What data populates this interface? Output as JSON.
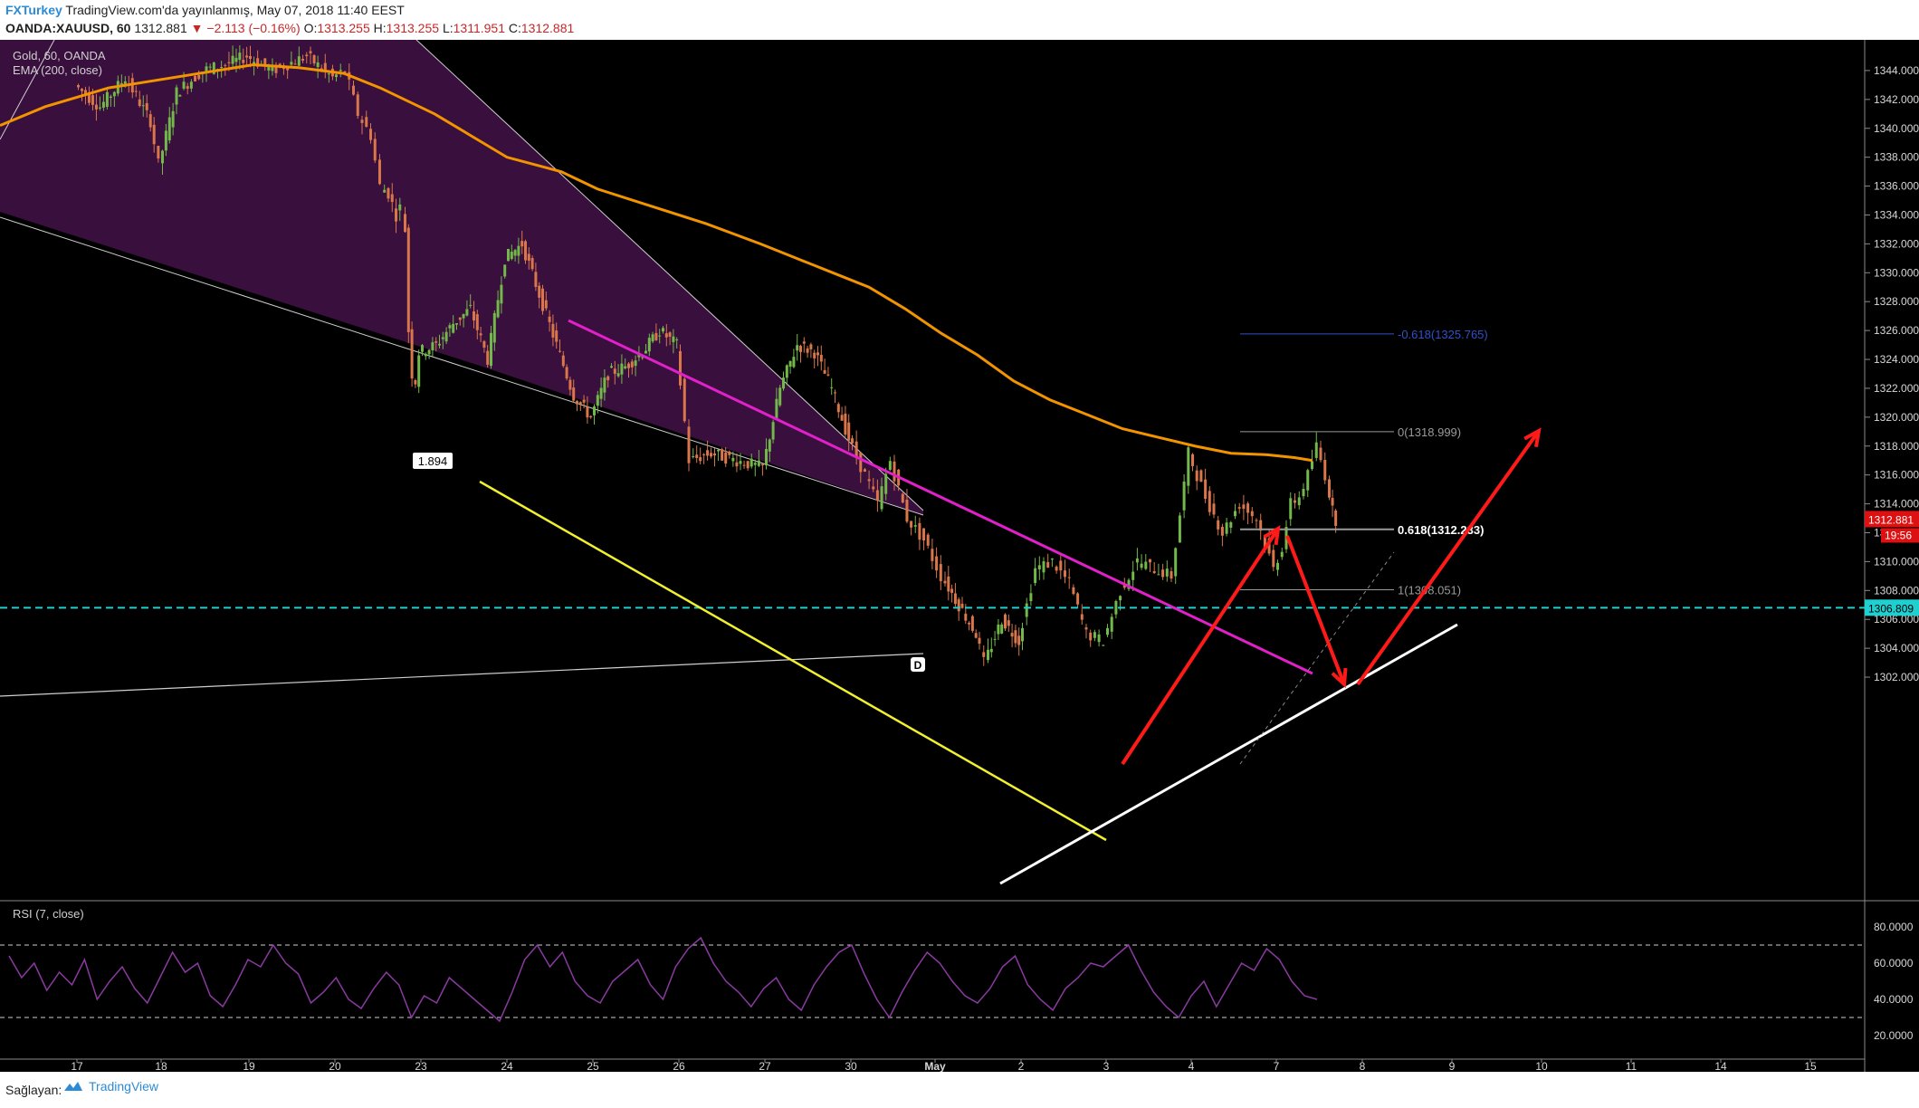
{
  "header": {
    "publisher": "FXTurkey",
    "published": "TradingView.com'da yayınlanmış, May 07, 2018 11:40 EEST",
    "symbol": "OANDA:XAUUSD, 60",
    "last": "1312.881",
    "change": "−2.113 (−0.16%)",
    "o_label": "O:",
    "o": "1313.255",
    "h_label": "H:",
    "h": "1313.255",
    "l_label": "L:",
    "l": "1311.951",
    "c_label": "C:",
    "c": "1312.881"
  },
  "footer": {
    "provider": "Sağlayan:",
    "brand": "TradingView"
  },
  "colors": {
    "background": "#000000",
    "up": "#72b84a",
    "down": "#d9764a",
    "ema": "#f29400",
    "magenta": "#e020c8",
    "yellow": "#f0f030",
    "white": "#ffffff",
    "cyan": "#1fd0d0",
    "red": "#ff1a1a",
    "fill": "#3c1040",
    "rsi": "#8a3aa0",
    "fib_blue": "#3050c8"
  },
  "chart_data": {
    "type": "candlestick",
    "overlay_labels": [
      "Gold, 60, OANDA",
      "EMA (200, close)"
    ],
    "price_range": [
      1301,
      1345.5
    ],
    "x_ticks": [
      "17",
      "18",
      "19",
      "20",
      "23",
      "24",
      "25",
      "26",
      "27",
      "30",
      "May",
      "2",
      "3",
      "4",
      "7",
      "8",
      "9",
      "10",
      "11",
      "14",
      "15"
    ],
    "y_ticks": [
      "1344.000",
      "1342.000",
      "1340.000",
      "1338.000",
      "1336.000",
      "1334.000",
      "1332.000",
      "1330.000",
      "1328.000",
      "1326.000",
      "1324.000",
      "1322.000",
      "1320.000",
      "1318.000",
      "1316.000",
      "1314.000",
      "1312.000",
      "1310.000",
      "1308.000",
      "1306.000",
      "1304.000",
      "1302.000"
    ],
    "current_price": "1312.881",
    "countdown": "19:56",
    "horizontal_level": "1306.809",
    "pattern_label_ratio": "1.894",
    "pattern_point": "D",
    "fib_levels": [
      {
        "label": "-0.618(1325.765)",
        "value": 1325.765
      },
      {
        "label": "0(1318.999)",
        "value": 1318.999
      },
      {
        "label": "0.618(1312.233)",
        "value": 1312.233
      },
      {
        "label": "1(1308.051)",
        "value": 1308.051
      }
    ],
    "ohlc_path": [
      [
        17.0,
        1343
      ],
      [
        17.3,
        1341.5
      ],
      [
        17.6,
        1343.5
      ],
      [
        17.9,
        1340.5
      ],
      [
        18.0,
        1337.5
      ],
      [
        18.2,
        1342.5
      ],
      [
        18.5,
        1344
      ],
      [
        18.8,
        1344.5
      ],
      [
        19.0,
        1345
      ],
      [
        19.3,
        1344
      ],
      [
        19.7,
        1345
      ],
      [
        20.0,
        1343.5
      ],
      [
        20.3,
        1344
      ],
      [
        20.6,
        1341
      ],
      [
        20.9,
        1339.5
      ],
      [
        21.2,
        1336
      ],
      [
        21.5,
        1335.5
      ],
      [
        21.8,
        1334
      ],
      [
        22.0,
        1334.5
      ],
      [
        22.2,
        1333
      ],
      [
        22.4,
        1326
      ],
      [
        22.6,
        1323
      ],
      [
        22.8,
        1322.5
      ],
      [
        23.0,
        1324.5
      ],
      [
        23.2,
        1325
      ],
      [
        23.4,
        1326.5
      ],
      [
        23.6,
        1327.5
      ],
      [
        23.8,
        1324
      ],
      [
        24.0,
        1331
      ],
      [
        24.2,
        1332
      ],
      [
        24.4,
        1328.5
      ],
      [
        24.6,
        1325
      ],
      [
        24.8,
        1321.5
      ],
      [
        25.0,
        1320
      ],
      [
        25.2,
        1323
      ],
      [
        25.4,
        1323.5
      ],
      [
        25.6,
        1324.5
      ],
      [
        25.8,
        1326
      ],
      [
        26.0,
        1325
      ],
      [
        26.15,
        1317
      ],
      [
        26.4,
        1317.5
      ],
      [
        26.7,
        1317
      ],
      [
        27.0,
        1316.5
      ],
      [
        27.2,
        1322
      ],
      [
        27.4,
        1325
      ],
      [
        27.6,
        1324.5
      ],
      [
        27.8,
        1322
      ],
      [
        28.0,
        1318.5
      ],
      [
        28.2,
        1316
      ],
      [
        28.35,
        1314
      ],
      [
        28.5,
        1317
      ],
      [
        28.7,
        1313
      ],
      [
        28.9,
        1311.5
      ],
      [
        29.1,
        1309
      ],
      [
        29.3,
        1307
      ],
      [
        29.5,
        1305
      ],
      [
        29.6,
        1303
      ],
      [
        29.8,
        1306
      ],
      [
        30.0,
        1304.5
      ],
      [
        30.2,
        1309.5
      ],
      [
        30.4,
        1310
      ],
      [
        30.6,
        1308.5
      ],
      [
        30.8,
        1305
      ],
      [
        31.0,
        1304.5
      ],
      [
        31.2,
        1308
      ],
      [
        31.4,
        1310
      ],
      [
        31.6,
        1309.5
      ],
      [
        31.8,
        1309
      ],
      [
        32.0,
        1317.5
      ],
      [
        32.2,
        1314.5
      ],
      [
        32.4,
        1312
      ],
      [
        32.6,
        1314
      ],
      [
        32.8,
        1313
      ],
      [
        33.0,
        1309.5
      ],
      [
        33.2,
        1311
      ],
      [
        33.4,
        1314
      ],
      [
        33.6,
        1314.5
      ],
      [
        33.8,
        1316
      ],
      [
        34.0,
        1318
      ],
      [
        34.2,
        1316
      ],
      [
        34.35,
        1313.5
      ],
      [
        34.45,
        1312.9
      ]
    ],
    "ema200_path": [
      [
        0,
        1340.2
      ],
      [
        50,
        1341.5
      ],
      [
        120,
        1342.8
      ],
      [
        200,
        1343.6
      ],
      [
        280,
        1344.4
      ],
      [
        330,
        1344.2
      ],
      [
        380,
        1343.8
      ],
      [
        420,
        1342.8
      ],
      [
        480,
        1341.0
      ],
      [
        520,
        1339.5
      ],
      [
        560,
        1338.0
      ],
      [
        620,
        1337.0
      ],
      [
        660,
        1335.8
      ],
      [
        720,
        1334.6
      ],
      [
        780,
        1333.4
      ],
      [
        840,
        1332.0
      ],
      [
        880,
        1331.0
      ],
      [
        920,
        1330.0
      ],
      [
        960,
        1329.0
      ],
      [
        1000,
        1327.5
      ],
      [
        1040,
        1325.8
      ],
      [
        1080,
        1324.3
      ],
      [
        1120,
        1322.5
      ],
      [
        1160,
        1321.2
      ],
      [
        1200,
        1320.2
      ],
      [
        1240,
        1319.2
      ],
      [
        1280,
        1318.6
      ],
      [
        1320,
        1318.0
      ],
      [
        1360,
        1317.5
      ],
      [
        1400,
        1317.4
      ],
      [
        1430,
        1317.2
      ],
      [
        1450,
        1317.0
      ]
    ],
    "rsi": {
      "label": "RSI (7, close)",
      "levels": [
        70,
        30
      ],
      "y_ticks": [
        "80.0000",
        "60.0000",
        "40.0000",
        "20.0000"
      ],
      "values": [
        64,
        52,
        60,
        45,
        55,
        48,
        62,
        40,
        50,
        58,
        46,
        38,
        52,
        66,
        55,
        60,
        42,
        36,
        48,
        62,
        58,
        70,
        60,
        54,
        38,
        44,
        52,
        40,
        35,
        46,
        55,
        48,
        30,
        42,
        38,
        52,
        46,
        40,
        34,
        28,
        44,
        62,
        70,
        58,
        66,
        50,
        42,
        38,
        50,
        56,
        62,
        48,
        40,
        58,
        68,
        74,
        60,
        50,
        44,
        36,
        46,
        52,
        40,
        34,
        48,
        58,
        66,
        70,
        54,
        40,
        30,
        44,
        56,
        66,
        60,
        50,
        42,
        38,
        46,
        58,
        64,
        48,
        40,
        34,
        46,
        52,
        60,
        58,
        64,
        70,
        56,
        44,
        36,
        30,
        42,
        50,
        36,
        48,
        60,
        56,
        68,
        62,
        50,
        42,
        40
      ]
    }
  }
}
